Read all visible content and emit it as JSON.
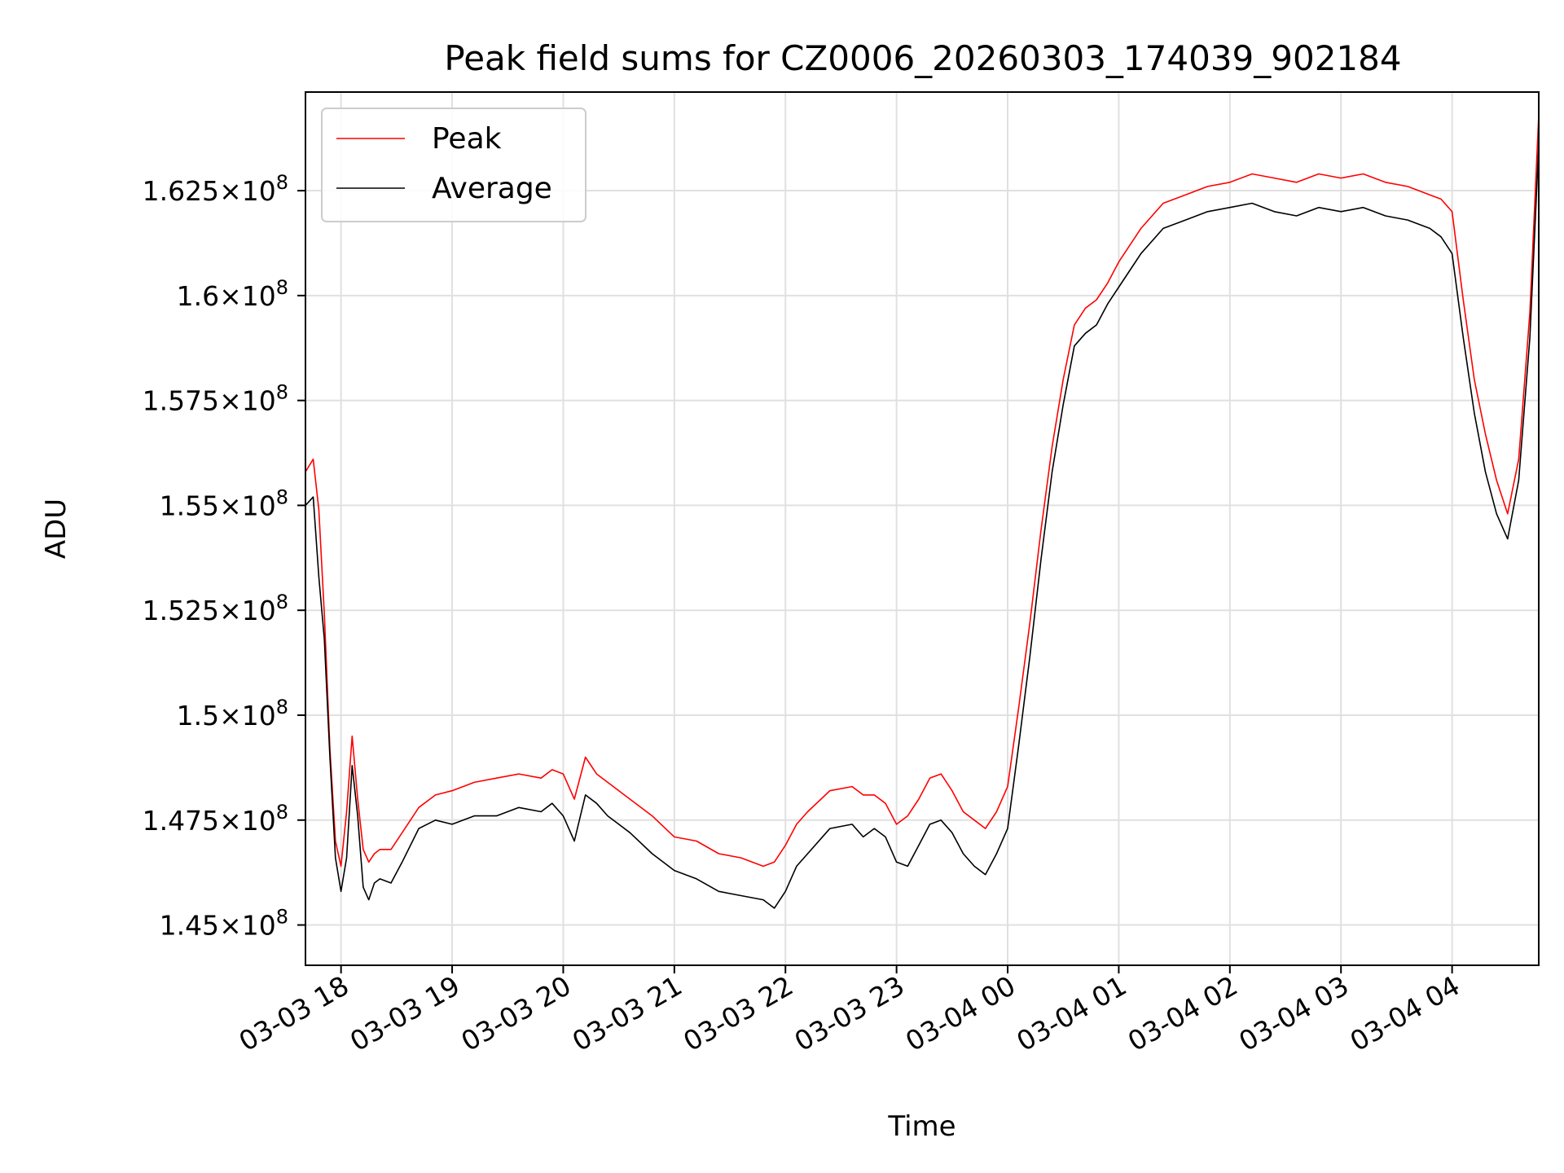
{
  "chart_data": {
    "type": "line",
    "title": "Peak field sums for CZ0006_20260303_174039_902184",
    "xlabel": "Time",
    "ylabel": "ADU",
    "grid": true,
    "legend_position": "top-left",
    "xlim": [
      -0.32,
      10.78
    ],
    "ylim": [
      144040000,
      164850000
    ],
    "x_unit": "hours since 03-03 18:00",
    "x_ticks": [
      {
        "value": 0,
        "label": "03-03 18"
      },
      {
        "value": 1,
        "label": "03-03 19"
      },
      {
        "value": 2,
        "label": "03-03 20"
      },
      {
        "value": 3,
        "label": "03-03 21"
      },
      {
        "value": 4,
        "label": "03-03 22"
      },
      {
        "value": 5,
        "label": "03-03 23"
      },
      {
        "value": 6,
        "label": "03-04 00"
      },
      {
        "value": 7,
        "label": "03-04 01"
      },
      {
        "value": 8,
        "label": "03-04 02"
      },
      {
        "value": 9,
        "label": "03-04 03"
      },
      {
        "value": 10,
        "label": "03-04 04"
      }
    ],
    "y_ticks": [
      {
        "value": 145000000,
        "mantissa": "1.45",
        "exp": "8"
      },
      {
        "value": 147500000,
        "mantissa": "1.475",
        "exp": "8"
      },
      {
        "value": 150000000,
        "mantissa": "1.5",
        "exp": "8"
      },
      {
        "value": 152500000,
        "mantissa": "1.525",
        "exp": "8"
      },
      {
        "value": 155000000,
        "mantissa": "1.55",
        "exp": "8"
      },
      {
        "value": 157500000,
        "mantissa": "1.575",
        "exp": "8"
      },
      {
        "value": 160000000,
        "mantissa": "1.6",
        "exp": "8"
      },
      {
        "value": 162500000,
        "mantissa": "1.625",
        "exp": "8"
      }
    ],
    "y_tick_times": "×10",
    "series": [
      {
        "name": "Peak",
        "color": "#ff0000",
        "x": [
          -0.32,
          -0.25,
          -0.2,
          -0.15,
          -0.1,
          -0.05,
          0.0,
          0.05,
          0.1,
          0.15,
          0.2,
          0.25,
          0.3,
          0.35,
          0.45,
          0.55,
          0.7,
          0.85,
          1.0,
          1.2,
          1.4,
          1.6,
          1.8,
          1.9,
          2.0,
          2.1,
          2.2,
          2.3,
          2.4,
          2.6,
          2.8,
          3.0,
          3.2,
          3.4,
          3.6,
          3.8,
          3.9,
          4.0,
          4.1,
          4.2,
          4.4,
          4.6,
          4.7,
          4.8,
          4.9,
          5.0,
          5.1,
          5.2,
          5.3,
          5.4,
          5.5,
          5.6,
          5.7,
          5.8,
          5.9,
          6.0,
          6.1,
          6.2,
          6.3,
          6.4,
          6.5,
          6.6,
          6.7,
          6.8,
          6.9,
          7.0,
          7.2,
          7.4,
          7.6,
          7.8,
          8.0,
          8.2,
          8.4,
          8.6,
          8.8,
          9.0,
          9.2,
          9.4,
          9.6,
          9.8,
          9.9,
          10.0,
          10.1,
          10.2,
          10.3,
          10.4,
          10.5,
          10.6,
          10.7,
          10.78
        ],
        "y": [
          155800000,
          156100000,
          154900000,
          152400000,
          149200000,
          147000000,
          146400000,
          147700000,
          149500000,
          148000000,
          146800000,
          146500000,
          146700000,
          146800000,
          146800000,
          147200000,
          147800000,
          148100000,
          148200000,
          148400000,
          148500000,
          148600000,
          148500000,
          148700000,
          148600000,
          148000000,
          149000000,
          148600000,
          148400000,
          148000000,
          147600000,
          147100000,
          147000000,
          146700000,
          146600000,
          146400000,
          146500000,
          146900000,
          147400000,
          147700000,
          148200000,
          148300000,
          148100000,
          148100000,
          147900000,
          147400000,
          147600000,
          148000000,
          148500000,
          148600000,
          148200000,
          147700000,
          147500000,
          147300000,
          147700000,
          148300000,
          150200000,
          152200000,
          154400000,
          156400000,
          158000000,
          159300000,
          159700000,
          159900000,
          160300000,
          160800000,
          161600000,
          162200000,
          162400000,
          162600000,
          162700000,
          162900000,
          162800000,
          162700000,
          162900000,
          162800000,
          162900000,
          162700000,
          162600000,
          162400000,
          162300000,
          162000000,
          159900000,
          158000000,
          156700000,
          155600000,
          154800000,
          156100000,
          159600000,
          164300000
        ]
      },
      {
        "name": "Average",
        "color": "#000000",
        "x": [
          -0.32,
          -0.25,
          -0.2,
          -0.15,
          -0.1,
          -0.05,
          0.0,
          0.05,
          0.1,
          0.15,
          0.2,
          0.25,
          0.3,
          0.35,
          0.45,
          0.55,
          0.7,
          0.85,
          1.0,
          1.2,
          1.4,
          1.6,
          1.8,
          1.9,
          2.0,
          2.1,
          2.2,
          2.3,
          2.4,
          2.6,
          2.8,
          3.0,
          3.2,
          3.4,
          3.6,
          3.8,
          3.9,
          4.0,
          4.1,
          4.2,
          4.4,
          4.6,
          4.7,
          4.8,
          4.9,
          5.0,
          5.1,
          5.2,
          5.3,
          5.4,
          5.5,
          5.6,
          5.7,
          5.8,
          5.9,
          6.0,
          6.1,
          6.2,
          6.3,
          6.4,
          6.5,
          6.6,
          6.7,
          6.8,
          6.9,
          7.0,
          7.2,
          7.4,
          7.6,
          7.8,
          8.0,
          8.2,
          8.4,
          8.6,
          8.8,
          9.0,
          9.2,
          9.4,
          9.6,
          9.8,
          9.9,
          10.0,
          10.1,
          10.2,
          10.3,
          10.4,
          10.5,
          10.6,
          10.7,
          10.78
        ],
        "y": [
          155000000,
          155200000,
          153300000,
          151800000,
          149000000,
          146600000,
          145800000,
          146600000,
          148800000,
          147600000,
          145900000,
          145600000,
          146000000,
          146100000,
          146000000,
          146500000,
          147300000,
          147500000,
          147400000,
          147600000,
          147600000,
          147800000,
          147700000,
          147900000,
          147600000,
          147000000,
          148100000,
          147900000,
          147600000,
          147200000,
          146700000,
          146300000,
          146100000,
          145800000,
          145700000,
          145600000,
          145400000,
          145800000,
          146400000,
          146700000,
          147300000,
          147400000,
          147100000,
          147300000,
          147100000,
          146500000,
          146400000,
          146900000,
          147400000,
          147500000,
          147200000,
          146700000,
          146400000,
          146200000,
          146700000,
          147300000,
          149300000,
          151400000,
          153700000,
          155800000,
          157400000,
          158800000,
          159100000,
          159300000,
          159800000,
          160200000,
          161000000,
          161600000,
          161800000,
          162000000,
          162100000,
          162200000,
          162000000,
          161900000,
          162100000,
          162000000,
          162100000,
          161900000,
          161800000,
          161600000,
          161400000,
          161000000,
          159000000,
          157200000,
          155800000,
          154800000,
          154200000,
          155600000,
          159000000,
          163600000
        ]
      }
    ]
  }
}
